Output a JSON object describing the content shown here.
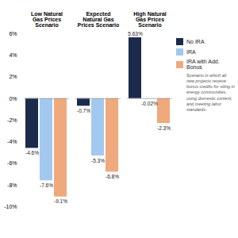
{
  "chart_data": {
    "type": "bar",
    "categories": [
      "Low Natural Gas Prices Scenario",
      "Expected Natural Gas Prices Scenario",
      "High Natural Gas Prices Scenario"
    ],
    "series": [
      {
        "name": "No IRA",
        "color": "#1c2b4b",
        "values": [
          -4.6,
          -0.7,
          5.63
        ],
        "value_labels": [
          "-4.6%",
          "-0.7%",
          "5.63%"
        ]
      },
      {
        "name": "IRA",
        "color": "#a3c8f0",
        "values": [
          -7.6,
          -5.3,
          -0.02
        ],
        "value_labels": [
          "-7.6%",
          "-5.3%",
          "-0.02%"
        ]
      },
      {
        "name": "IRA with Add. Bonus",
        "color": "#f0a97c",
        "values": [
          -9.1,
          -6.8,
          -2.3
        ],
        "value_labels": [
          "-9.1%",
          "-6.8%",
          "-2.3%"
        ]
      }
    ],
    "annotation": "Scenario in which all new projects receive bonus credits for siting in energy communities, using domestic content, and meeting labor standards.",
    "ylim": [
      -10,
      6
    ],
    "yticks": [
      {
        "value": 6,
        "label": "6%"
      },
      {
        "value": 4,
        "label": "4%"
      },
      {
        "value": 2,
        "label": "2%"
      },
      {
        "value": 0,
        "label": "0%"
      },
      {
        "value": -2,
        "label": "-2%"
      },
      {
        "value": -4,
        "label": "-4%"
      },
      {
        "value": -6,
        "label": "-6%"
      },
      {
        "value": -8,
        "label": "-8%"
      },
      {
        "value": -10,
        "label": "-10%"
      }
    ],
    "grid": false,
    "data_labels": true
  }
}
